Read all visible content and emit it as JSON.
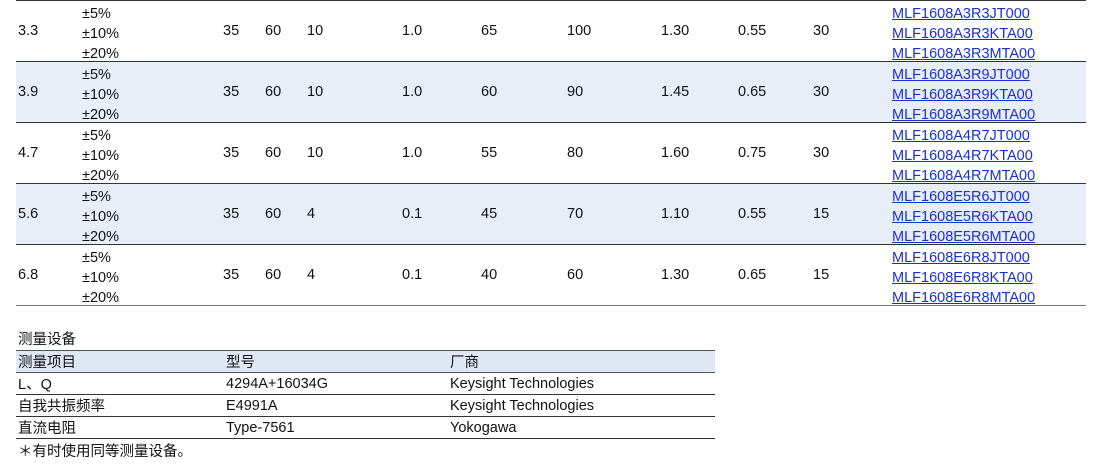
{
  "rows": [
    {
      "inductance": "3.3",
      "tolerances": [
        "±5%",
        "±10%",
        "±20%"
      ],
      "q_min": "35",
      "q_typ": "60",
      "test_freq": "10",
      "l_test_freq": "1.0",
      "srf_min": "65",
      "srf_typ": "100",
      "rdc_max": "1.30",
      "rdc_typ": "0.55",
      "rated_current": "30",
      "part_numbers": [
        "MLF1608A3R3JT000",
        "MLF1608A3R3KTA00",
        "MLF1608A3R3MTA00"
      ]
    },
    {
      "inductance": "3.9",
      "tolerances": [
        "±5%",
        "±10%",
        "±20%"
      ],
      "q_min": "35",
      "q_typ": "60",
      "test_freq": "10",
      "l_test_freq": "1.0",
      "srf_min": "60",
      "srf_typ": "90",
      "rdc_max": "1.45",
      "rdc_typ": "0.65",
      "rated_current": "30",
      "part_numbers": [
        "MLF1608A3R9JT000",
        "MLF1608A3R9KTA00",
        "MLF1608A3R9MTA00"
      ]
    },
    {
      "inductance": "4.7",
      "tolerances": [
        "±5%",
        "±10%",
        "±20%"
      ],
      "q_min": "35",
      "q_typ": "60",
      "test_freq": "10",
      "l_test_freq": "1.0",
      "srf_min": "55",
      "srf_typ": "80",
      "rdc_max": "1.60",
      "rdc_typ": "0.75",
      "rated_current": "30",
      "part_numbers": [
        "MLF1608A4R7JT000",
        "MLF1608A4R7KTA00",
        "MLF1608A4R7MTA00"
      ]
    },
    {
      "inductance": "5.6",
      "tolerances": [
        "±5%",
        "±10%",
        "±20%"
      ],
      "q_min": "35",
      "q_typ": "60",
      "test_freq": "4",
      "l_test_freq": "0.1",
      "srf_min": "45",
      "srf_typ": "70",
      "rdc_max": "1.10",
      "rdc_typ": "0.55",
      "rated_current": "15",
      "part_numbers": [
        "MLF1608E5R6JT000",
        "MLF1608E5R6KTA00",
        "MLF1608E5R6MTA00"
      ]
    },
    {
      "inductance": "6.8",
      "tolerances": [
        "±5%",
        "±10%",
        "±20%"
      ],
      "q_min": "35",
      "q_typ": "60",
      "test_freq": "4",
      "l_test_freq": "0.1",
      "srf_min": "40",
      "srf_typ": "60",
      "rdc_max": "1.30",
      "rdc_typ": "0.65",
      "rated_current": "15",
      "part_numbers": [
        "MLF1608E6R8JT000",
        "MLF1608E6R8KTA00",
        "MLF1608E6R8MTA00"
      ]
    }
  ],
  "equipment": {
    "title": "测量设备",
    "headers": [
      "测量项目",
      "型号",
      "厂商"
    ],
    "rows": [
      [
        "L、Q",
        "4294A+16034G",
        "Keysight Technologies"
      ],
      [
        "自我共振频率",
        "E4991A",
        "Keysight Technologies"
      ],
      [
        "直流电阻",
        "Type-7561",
        "Yokogawa"
      ]
    ],
    "note": "＊有时使用同等测量设备。"
  },
  "colors": {
    "link": "#1a2fd0",
    "row_shade": "#e8eef8",
    "header_shade": "#dfe7f4"
  }
}
